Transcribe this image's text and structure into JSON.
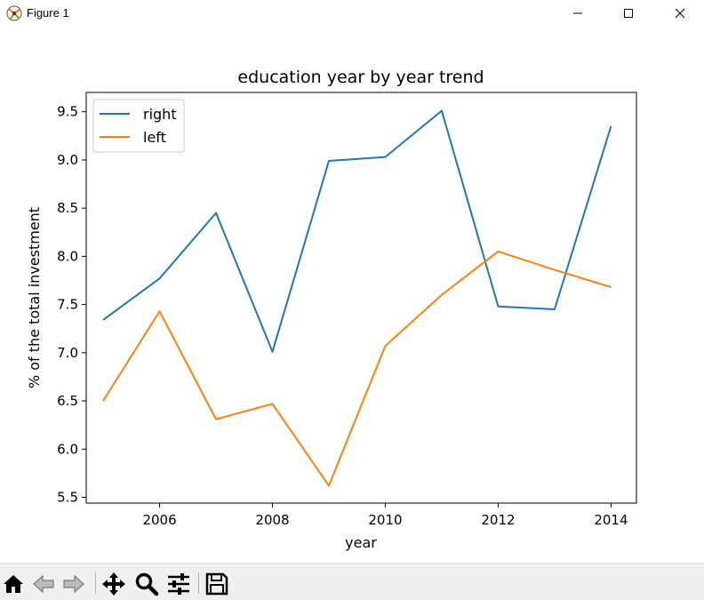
{
  "window": {
    "title": "Figure 1",
    "icons": [
      "app-icon",
      "minimize-icon",
      "maximize-icon",
      "close-icon"
    ]
  },
  "toolbar": {
    "buttons": [
      "home-icon",
      "back-arrow-icon",
      "forward-arrow-icon",
      "pan-move-icon",
      "zoom-magnifier-icon",
      "configure-subplots-icon",
      "save-floppy-icon"
    ]
  },
  "colors": {
    "right": "#1f77b4",
    "left": "#ff7f0e"
  },
  "chart_data": {
    "type": "line",
    "title": "education year by year trend",
    "xlabel": "year",
    "ylabel": "% of the total investment",
    "x": [
      2005,
      2006,
      2007,
      2008,
      2009,
      2010,
      2011,
      2012,
      2013,
      2014
    ],
    "xlim": [
      2004.7,
      2014.45
    ],
    "ylim": [
      5.44,
      9.7
    ],
    "xticks": [
      2006,
      2008,
      2010,
      2012,
      2014
    ],
    "yticks": [
      5.5,
      6.0,
      6.5,
      7.0,
      7.5,
      8.0,
      8.5,
      9.0,
      9.5
    ],
    "yticklabels": [
      "5.5",
      "6.0",
      "6.5",
      "7.0",
      "7.5",
      "8.0",
      "8.5",
      "9.0",
      "9.5"
    ],
    "grid": false,
    "legend_position": "upper left",
    "series": [
      {
        "name": "right",
        "color": "#1f77b4",
        "values": [
          7.34,
          7.77,
          8.45,
          7.01,
          8.99,
          9.03,
          9.51,
          7.48,
          7.45,
          9.35
        ]
      },
      {
        "name": "left",
        "color": "#ff7f0e",
        "values": [
          6.5,
          7.43,
          6.31,
          6.47,
          5.62,
          7.07,
          7.6,
          8.05,
          7.86,
          7.68
        ]
      }
    ]
  }
}
